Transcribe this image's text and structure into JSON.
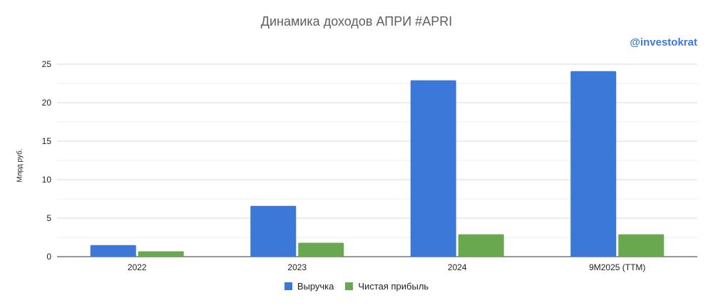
{
  "chart_data": {
    "type": "bar",
    "title": "Динамика доходов АПРИ #APRI",
    "watermark": "@investokrat",
    "ylabel": "Млрд руб.",
    "xlabel": "",
    "ylim": [
      0,
      25
    ],
    "yticks": [
      0,
      5,
      10,
      15,
      20,
      25
    ],
    "grid": true,
    "legend_position": "bottom",
    "categories": [
      "2022",
      "2023",
      "2024",
      "9M2025 (TTM)"
    ],
    "series": [
      {
        "name": "Выручка",
        "color": "#3c78d8",
        "values": [
          1.5,
          6.6,
          22.9,
          24.1
        ]
      },
      {
        "name": "Чистая прибыль",
        "color": "#6aa84f",
        "values": [
          0.7,
          1.8,
          2.9,
          2.9
        ]
      }
    ]
  }
}
